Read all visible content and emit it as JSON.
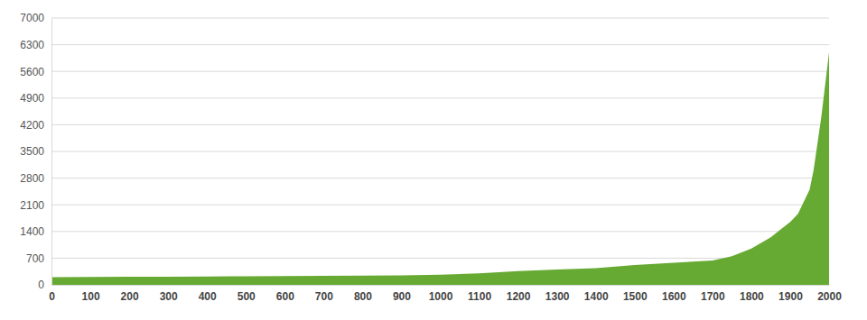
{
  "chart_data": {
    "type": "area",
    "x": [
      0,
      100,
      200,
      300,
      400,
      500,
      600,
      700,
      800,
      900,
      1000,
      1100,
      1200,
      1300,
      1400,
      1500,
      1600,
      1700,
      1750,
      1800,
      1850,
      1900,
      1920,
      1950,
      1960,
      1980,
      2000
    ],
    "values": [
      200,
      205,
      210,
      215,
      220,
      225,
      230,
      235,
      240,
      250,
      265,
      300,
      360,
      400,
      440,
      520,
      580,
      640,
      750,
      950,
      1250,
      1650,
      1860,
      2500,
      3000,
      4400,
      6100
    ],
    "color": "#66aa33",
    "xlim": [
      0,
      2000
    ],
    "xticks": [
      0,
      100,
      200,
      300,
      400,
      500,
      600,
      700,
      800,
      900,
      1000,
      1100,
      1200,
      1300,
      1400,
      1500,
      1600,
      1700,
      1800,
      1900,
      2000
    ],
    "ylim": [
      0,
      7000
    ],
    "yticks": [
      0,
      700,
      1400,
      2100,
      2800,
      3500,
      4200,
      4900,
      5600,
      6300,
      7000
    ],
    "grid": true
  }
}
